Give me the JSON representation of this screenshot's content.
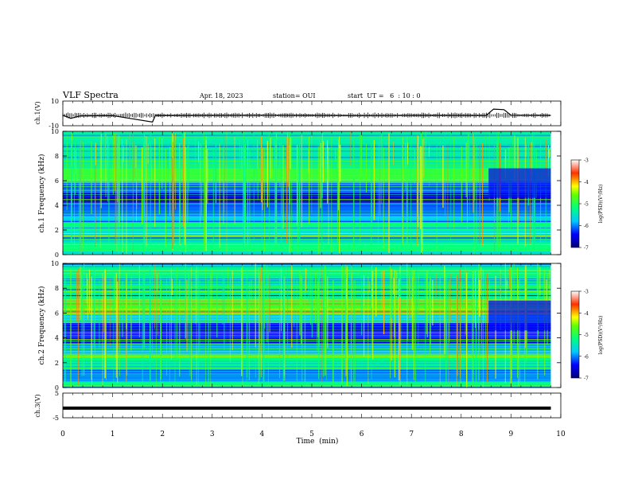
{
  "header": {
    "title": "VLF Spectra",
    "date": "Apr. 18, 2023",
    "station": "station= OUI",
    "start": "start  UT =   6  : 10 : 0"
  },
  "chart_data": [
    {
      "type": "line",
      "panel": "ch1-waveform",
      "ylabel": "ch.1(V)",
      "ylim": [
        -10,
        10
      ],
      "yticks": [
        "10",
        "-10"
      ],
      "x": [
        0,
        0.16,
        0.35,
        1.0,
        1.8,
        1.86,
        2.4,
        3.0,
        4.0,
        5.0,
        6.0,
        7.0,
        8.0,
        8.5,
        8.65,
        8.86,
        9.0,
        9.8
      ],
      "values": [
        -1.5,
        -4.0,
        -2.0,
        -1.8,
        -7.0,
        -1.6,
        -1.7,
        -1.6,
        -1.5,
        -1.6,
        -1.8,
        -1.6,
        -1.6,
        -1.7,
        3.5,
        3.0,
        -1.5,
        -1.6
      ],
      "xlim": [
        0,
        10
      ],
      "grid": false
    },
    {
      "type": "heatmap",
      "panel": "ch1-spectrogram",
      "ylabel": "ch.1 Frequency (kHz)",
      "ylim": [
        0,
        10
      ],
      "yticks": [
        "0",
        "2",
        "4",
        "6",
        "8",
        "10"
      ],
      "xlim": [
        0,
        10
      ],
      "data_end_min": 9.8,
      "colorbar": {
        "label": "log(PSD)(V²/Hz)",
        "range": [
          -7,
          -3
        ],
        "ticks": [
          "-3",
          "-4",
          "-5",
          "-6",
          "-7"
        ]
      },
      "bands": [
        {
          "f": [
            0,
            0.3
          ],
          "level": -5.5
        },
        {
          "f": [
            0.3,
            1.0
          ],
          "level": -5.2
        },
        {
          "f": [
            1.0,
            2.0
          ],
          "level": -5.6
        },
        {
          "f": [
            2.0,
            2.6
          ],
          "level": -5.2
        },
        {
          "f": [
            2.6,
            3.3
          ],
          "level": -5.8
        },
        {
          "f": [
            3.3,
            4.2
          ],
          "level": -6.1
        },
        {
          "f": [
            4.2,
            5.0
          ],
          "level": -6.6
        },
        {
          "f": [
            5.0,
            5.9
          ],
          "level": -6.1
        },
        {
          "f": [
            5.9,
            7.0
          ],
          "level": -4.9
        },
        {
          "f": [
            7.0,
            10.0
          ],
          "level": -5.4
        }
      ]
    },
    {
      "type": "heatmap",
      "panel": "ch2-spectrogram",
      "ylabel": "ch.2 Frequency (kHz)",
      "ylim": [
        0,
        10
      ],
      "yticks": [
        "0",
        "2",
        "4",
        "6",
        "8",
        "10"
      ],
      "xlim": [
        0,
        10
      ],
      "data_end_min": 9.8,
      "colorbar": {
        "label": "log(PSD)(V²/Hz)",
        "range": [
          -7,
          -3
        ],
        "ticks": [
          "-3",
          "-4",
          "-5",
          "-6",
          "-7"
        ]
      },
      "bands": [
        {
          "f": [
            0,
            0.5
          ],
          "level": -5.3
        },
        {
          "f": [
            0.5,
            1.5
          ],
          "level": -5.9
        },
        {
          "f": [
            1.5,
            2.7
          ],
          "level": -5.2
        },
        {
          "f": [
            2.7,
            3.6
          ],
          "level": -5.9
        },
        {
          "f": [
            3.6,
            5.2
          ],
          "level": -6.4
        },
        {
          "f": [
            5.2,
            5.9
          ],
          "level": -5.8
        },
        {
          "f": [
            5.9,
            7.0
          ],
          "level": -4.8
        },
        {
          "f": [
            7.0,
            10.0
          ],
          "level": -5.3
        }
      ]
    },
    {
      "type": "line",
      "panel": "ch3-waveform",
      "ylabel": "ch.3(V)",
      "ylim": [
        -5,
        5
      ],
      "yticks": [
        "5",
        "-5"
      ],
      "x": [
        0,
        9.8
      ],
      "values": [
        -1.1,
        -1.1
      ],
      "xlim": [
        0,
        10
      ],
      "xlabel": "Time  (min)",
      "xticks": [
        "0",
        "1",
        "2",
        "3",
        "4",
        "5",
        "6",
        "7",
        "8",
        "9",
        "10"
      ],
      "grid": false
    }
  ]
}
